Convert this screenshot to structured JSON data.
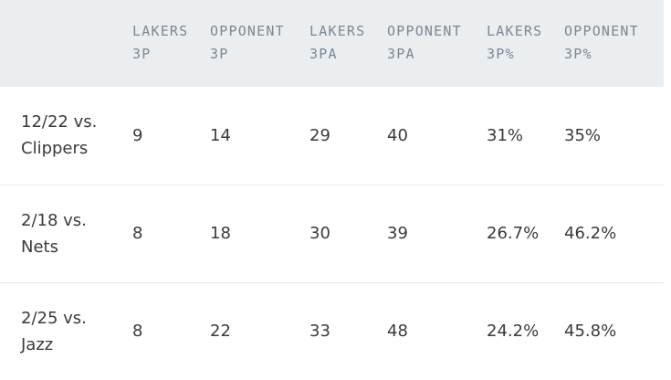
{
  "columns": [
    {
      "line1": "",
      "line2": ""
    },
    {
      "line1": "LAKERS",
      "line2": "3P"
    },
    {
      "line1": "OPPONENT",
      "line2": "3P"
    },
    {
      "line1": "LAKERS",
      "line2": "3PA"
    },
    {
      "line1": "OPPONENT",
      "line2": "3PA"
    },
    {
      "line1": "LAKERS",
      "line2": "3P%"
    },
    {
      "line1": "OPPONENT",
      "line2": "3P%"
    }
  ],
  "rows": [
    {
      "game_line1": "12/22 vs.",
      "game_line2": "Clippers",
      "lakers_3p": "9",
      "opp_3p": "14",
      "lakers_3pa": "29",
      "opp_3pa": "40",
      "lakers_pct": "31%",
      "opp_pct": "35%"
    },
    {
      "game_line1": "2/18 vs.",
      "game_line2": "Nets",
      "lakers_3p": "8",
      "opp_3p": "18",
      "lakers_3pa": "30",
      "opp_3pa": "39",
      "lakers_pct": "26.7%",
      "opp_pct": "46.2%"
    },
    {
      "game_line1": "2/25 vs.",
      "game_line2": "Jazz",
      "lakers_3p": "8",
      "opp_3p": "22",
      "lakers_3pa": "33",
      "opp_3pa": "48",
      "lakers_pct": "24.2%",
      "opp_pct": "45.8%"
    }
  ]
}
